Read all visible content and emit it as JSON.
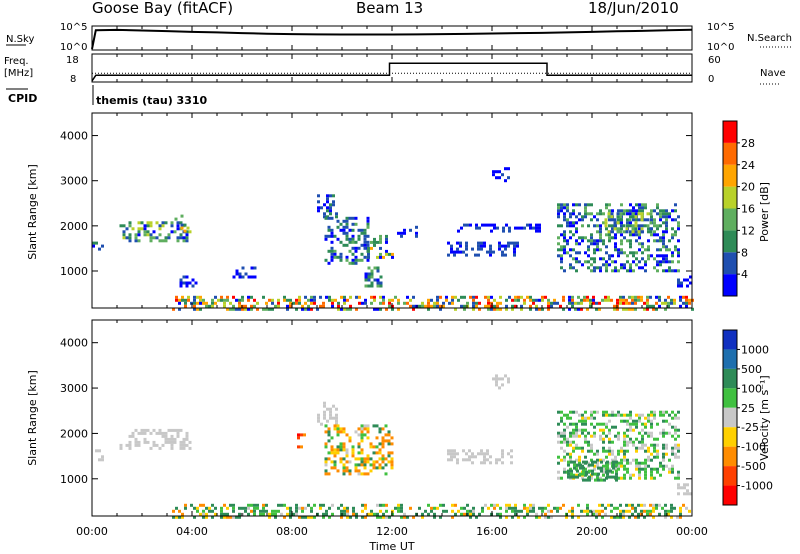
{
  "header": {
    "station": "Goose Bay (fitACF)",
    "beam": "Beam 13",
    "date": "18/Jun/2010"
  },
  "status_panels": {
    "nsky_label": "N.Sky",
    "nsky_ticks": [
      "10^5",
      "10^0"
    ],
    "nsearch_label": "N.Search",
    "nsearch_ticks": [
      "10^5",
      "10^0"
    ],
    "freq_label_line1": "Freq.",
    "freq_label_line2": "[MHz]",
    "freq_ticks": [
      "18",
      "8"
    ],
    "nave_label": "Nave",
    "nave_ticks": [
      "60",
      "0"
    ],
    "cpid_label": "CPID",
    "cpid_value": "themis (tau) 3310"
  },
  "colors": {
    "power_scale": [
      "#0000ff",
      "#1f4fb0",
      "#2e8b57",
      "#5fae5f",
      "#b8d12a",
      "#ffa500",
      "#ff6a00",
      "#ff0000"
    ],
    "velocity_scale": [
      "#1030c0",
      "#1e6fae",
      "#2e8b57",
      "#40c040",
      "#c8c8c8",
      "#ffd000",
      "#ff8c00",
      "#ff4000",
      "#ff0000"
    ],
    "ground_scatter": "#c8c8c8"
  },
  "chart_data": [
    {
      "type": "line",
      "name_label": "N.Sky",
      "x_range_hours": [
        0,
        24
      ],
      "y_scale": "log",
      "ylim": [
        1,
        100000
      ],
      "x": [
        0,
        0.15,
        1,
        2,
        3,
        4,
        5,
        6,
        7,
        8,
        9,
        10,
        11,
        12,
        13,
        14,
        15,
        16,
        17,
        18,
        19,
        20,
        21,
        22,
        23,
        24
      ],
      "values": [
        1,
        30000,
        35000,
        25000,
        18000,
        12000,
        9000,
        6000,
        4500,
        3500,
        3000,
        2800,
        2800,
        2800,
        3000,
        3500,
        4000,
        5000,
        6000,
        7000,
        9000,
        12000,
        16000,
        20000,
        28000,
        40000
      ]
    },
    {
      "type": "line",
      "name_label": "Freq. [MHz]",
      "ylim": [
        8,
        18
      ],
      "x": [
        0,
        0.15,
        11.9,
        11.9,
        18.2,
        18.2,
        24
      ],
      "values": [
        8,
        10.2,
        10.2,
        14.8,
        14.8,
        10.2,
        10.2
      ],
      "nave_series": {
        "name": "Nave",
        "ylim": [
          0,
          60
        ],
        "x": [
          0,
          24
        ],
        "values": [
          18,
          18
        ]
      }
    },
    {
      "type": "heatmap",
      "ylabel": "Slant Range [km]",
      "yticks": [
        "1000",
        "2000",
        "3000",
        "4000"
      ],
      "ylim": [
        180,
        4500
      ],
      "colorbar_label": "Power [dB]",
      "colorbar_ticks": [
        "4",
        "8",
        "12",
        "16",
        "20",
        "24",
        "28"
      ],
      "colorbar_range": [
        0,
        32
      ],
      "regions": [
        {
          "t": [
            0.0,
            0.4
          ],
          "r": [
            1450,
            1650
          ],
          "v": [
            2,
            10
          ]
        },
        {
          "t": [
            1.1,
            3.9
          ],
          "r": [
            1700,
            2100
          ],
          "v": [
            2,
            20
          ]
        },
        {
          "t": [
            3.3,
            3.9
          ],
          "r": [
            1900,
            2250
          ],
          "v": [
            6,
            22
          ]
        },
        {
          "t": [
            3.5,
            4.2
          ],
          "r": [
            700,
            900
          ],
          "v": [
            1,
            6
          ]
        },
        {
          "t": [
            5.5,
            6.5
          ],
          "r": [
            900,
            1100
          ],
          "v": [
            1,
            5
          ]
        },
        {
          "t": [
            9.0,
            9.8
          ],
          "r": [
            2200,
            2700
          ],
          "v": [
            2,
            10
          ]
        },
        {
          "t": [
            9.3,
            11.0
          ],
          "r": [
            1200,
            2200
          ],
          "v": [
            1,
            14
          ]
        },
        {
          "t": [
            11.0,
            12.0
          ],
          "r": [
            1300,
            1800
          ],
          "v": [
            3,
            24
          ]
        },
        {
          "t": [
            10.9,
            11.6
          ],
          "r": [
            700,
            1100
          ],
          "v": [
            2,
            14
          ]
        },
        {
          "t": [
            12.2,
            13.0
          ],
          "r": [
            1800,
            2000
          ],
          "v": [
            1,
            6
          ]
        },
        {
          "t": [
            14.2,
            17.0
          ],
          "r": [
            1350,
            1650
          ],
          "v": [
            1,
            8
          ]
        },
        {
          "t": [
            14.6,
            18.0
          ],
          "r": [
            1900,
            2050
          ],
          "v": [
            1,
            5
          ]
        },
        {
          "t": [
            16.0,
            16.6
          ],
          "r": [
            3000,
            3300
          ],
          "v": [
            1,
            6
          ]
        },
        {
          "t": [
            18.6,
            23.5
          ],
          "r": [
            1000,
            2500
          ],
          "v": [
            1,
            16
          ]
        },
        {
          "t": [
            20.5,
            22.5
          ],
          "r": [
            1900,
            2300
          ],
          "v": [
            4,
            20
          ]
        },
        {
          "t": [
            23.4,
            24.0
          ],
          "r": [
            650,
            900
          ],
          "v": [
            1,
            6
          ]
        },
        {
          "t": [
            3.2,
            24.0
          ],
          "r": [
            180,
            450
          ],
          "v": [
            2,
            30
          ]
        }
      ]
    },
    {
      "type": "heatmap",
      "xlabel": "Time UT",
      "xticks": [
        "00:00",
        "04:00",
        "08:00",
        "12:00",
        "16:00",
        "20:00",
        "00:00"
      ],
      "xlim": [
        0,
        24
      ],
      "ylabel": "Slant Range [km]",
      "yticks": [
        "1000",
        "2000",
        "3000",
        "4000"
      ],
      "ylim": [
        180,
        4500
      ],
      "colorbar_label": "Velocity [m s⁻¹]",
      "colorbar_ticks": [
        "1000",
        "500",
        "100",
        "25",
        "-25",
        "-100",
        "-500",
        "-1000"
      ],
      "regions": [
        {
          "t": [
            0.0,
            0.4
          ],
          "r": [
            1450,
            1650
          ],
          "v": [
            -20,
            20
          ]
        },
        {
          "t": [
            1.1,
            3.9
          ],
          "r": [
            1700,
            2100
          ],
          "v": [
            -20,
            20
          ]
        },
        {
          "t": [
            9.0,
            9.8
          ],
          "r": [
            2200,
            2700
          ],
          "v": [
            -20,
            20
          ]
        },
        {
          "t": [
            9.3,
            12.0
          ],
          "r": [
            1100,
            2200
          ],
          "v": [
            -300,
            200
          ]
        },
        {
          "t": [
            8.2,
            8.5
          ],
          "r": [
            1700,
            2000
          ],
          "v": [
            -600,
            -200
          ]
        },
        {
          "t": [
            14.2,
            17.0
          ],
          "r": [
            1350,
            1650
          ],
          "v": [
            -20,
            20
          ]
        },
        {
          "t": [
            16.0,
            16.6
          ],
          "r": [
            3000,
            3300
          ],
          "v": [
            -20,
            20
          ]
        },
        {
          "t": [
            18.6,
            23.5
          ],
          "r": [
            1000,
            2500
          ],
          "v": [
            -50,
            150
          ]
        },
        {
          "t": [
            19.0,
            21.0
          ],
          "r": [
            1000,
            1400
          ],
          "v": [
            50,
            300
          ]
        },
        {
          "t": [
            23.4,
            24.0
          ],
          "r": [
            650,
            900
          ],
          "v": [
            -20,
            20
          ]
        },
        {
          "t": [
            3.2,
            24.0
          ],
          "r": [
            180,
            450
          ],
          "v": [
            -150,
            300
          ]
        }
      ]
    }
  ]
}
